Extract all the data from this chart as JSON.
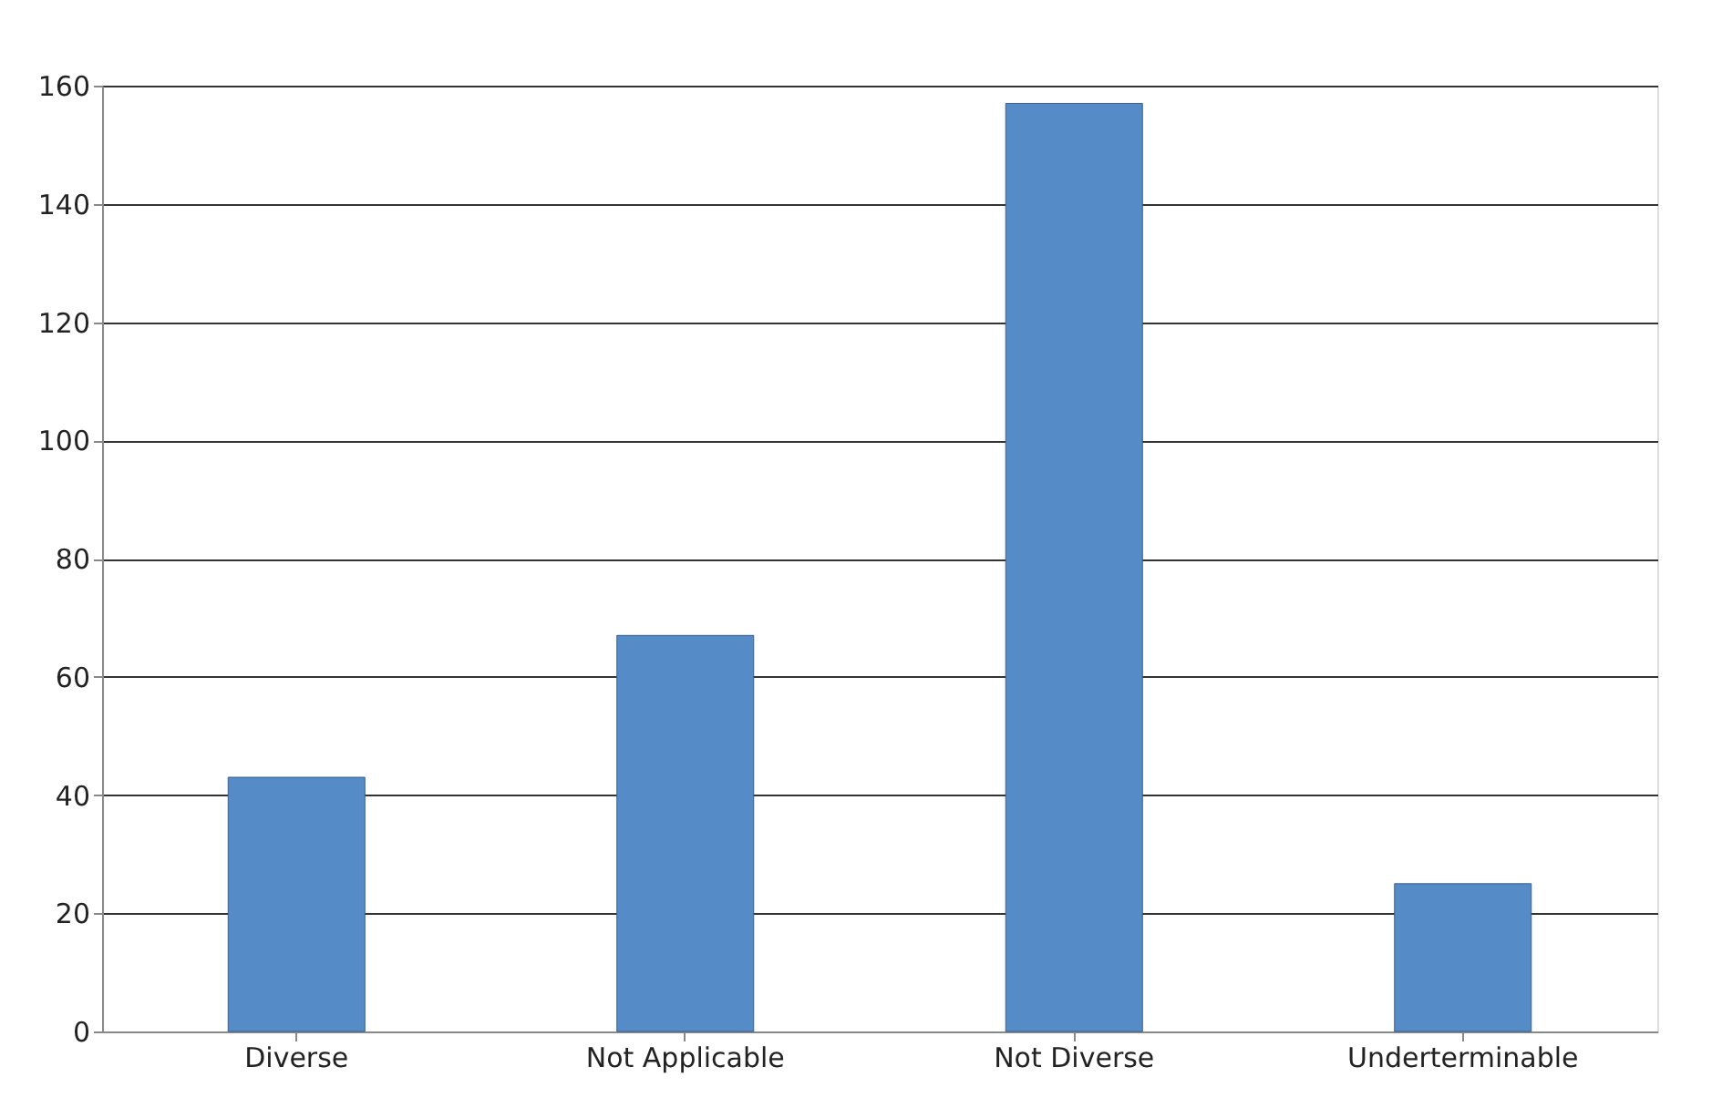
{
  "chart_data": {
    "type": "bar",
    "categories": [
      "Diverse",
      "Not Applicable",
      "Not Diverse",
      "Underterminable"
    ],
    "values": [
      43,
      67,
      157,
      25
    ],
    "color": "#558bc6",
    "ylim": [
      0,
      160
    ],
    "yticks": [
      0,
      20,
      40,
      60,
      80,
      100,
      120,
      140,
      160
    ],
    "grid": "y"
  }
}
